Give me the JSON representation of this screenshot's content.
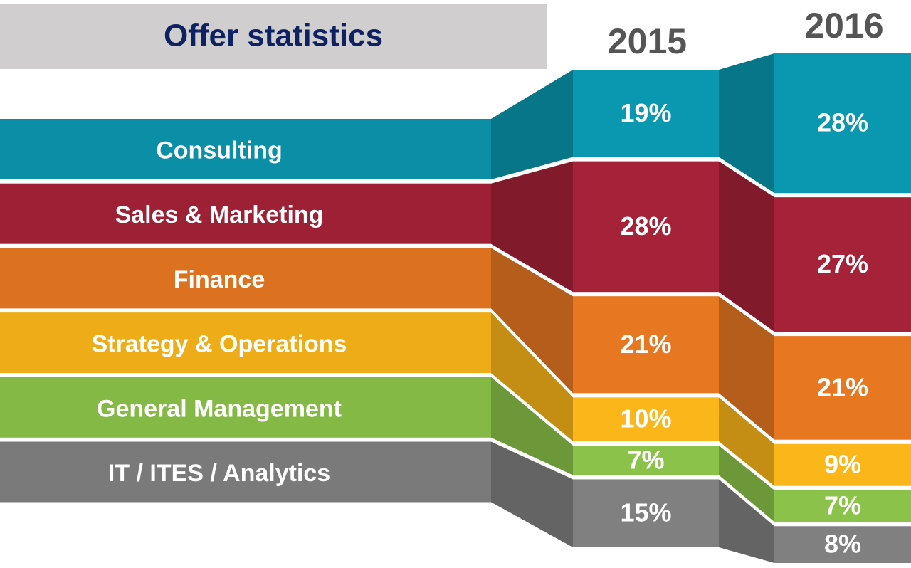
{
  "chart_data": {
    "type": "stacked-ribbon",
    "title": "Offer statistics",
    "categories": [
      "2015",
      "2016"
    ],
    "series": [
      {
        "name": "Consulting",
        "color": "#0a97b0",
        "values": [
          19,
          28
        ],
        "value_labels": [
          "19%",
          "28%"
        ]
      },
      {
        "name": "Sales & Marketing",
        "color": "#a52238",
        "values": [
          28,
          27
        ],
        "value_labels": [
          "28%",
          "27%"
        ]
      },
      {
        "name": "Finance",
        "color": "#e87722",
        "values": [
          21,
          21
        ],
        "value_labels": [
          "21%",
          "21%"
        ]
      },
      {
        "name": "Strategy & Operations",
        "color": "#fbb619",
        "values": [
          10,
          9
        ],
        "value_labels": [
          "10%",
          "9%"
        ]
      },
      {
        "name": "General Management",
        "color": "#8bc34a",
        "values": [
          7,
          7
        ],
        "value_labels": [
          "7%",
          "7%"
        ]
      },
      {
        "name": "IT / ITES / Analytics",
        "color": "#808080",
        "values": [
          15,
          8
        ],
        "value_labels": [
          "15%",
          "8%"
        ]
      }
    ]
  }
}
